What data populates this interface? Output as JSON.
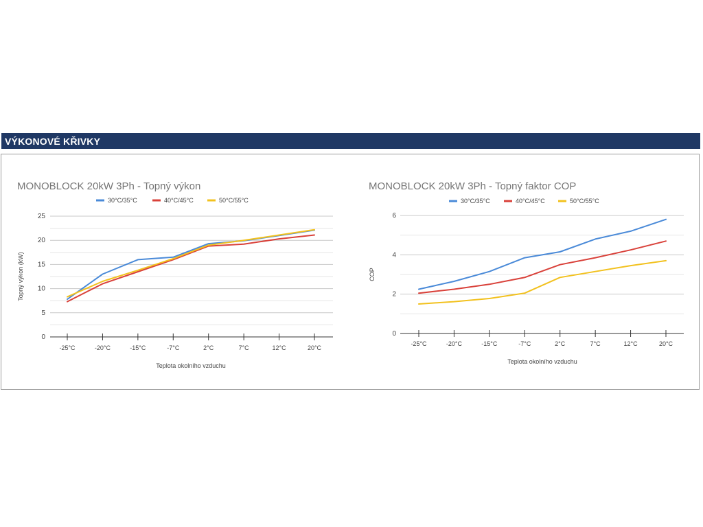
{
  "section": {
    "title": "VÝKONOVÉ KŘIVKY"
  },
  "colors": {
    "header_bg": "#1f3864",
    "series_1": "#4a8ad8",
    "series_2": "#d9413a",
    "series_3": "#f2c11e",
    "grid": "#d0d0d0"
  },
  "chart_data": [
    {
      "type": "line",
      "title": "MONOBLOCK 20kW 3Ph - Topný výkon",
      "xlabel": "Teplota okolního vzduchu",
      "ylabel": "Topný výkon (kW)",
      "categories": [
        "-25°C",
        "-20°C",
        "-15°C",
        "-7°C",
        "2°C",
        "7°C",
        "12°C",
        "20°C"
      ],
      "yticks": [
        "0",
        "5",
        "10",
        "15",
        "20",
        "25"
      ],
      "ylim": [
        0,
        25
      ],
      "grid": true,
      "legend": "top",
      "series": [
        {
          "name": "30°C/35°C",
          "color": "#4a8ad8",
          "values": [
            7.8,
            13.0,
            16.0,
            16.5,
            19.3,
            19.9,
            21.0,
            22.1
          ]
        },
        {
          "name": "40°C/45°C",
          "color": "#d9413a",
          "values": [
            7.3,
            11.0,
            13.5,
            16.0,
            18.8,
            19.2,
            20.3,
            21.1
          ]
        },
        {
          "name": "50°C/55°C",
          "color": "#f2c11e",
          "values": [
            8.3,
            11.5,
            13.8,
            16.2,
            19.0,
            20.0,
            21.1,
            22.2
          ]
        }
      ]
    },
    {
      "type": "line",
      "title": "MONOBLOCK 20kW 3Ph - Topný faktor COP",
      "xlabel": "Teplota okolního vzduchu",
      "ylabel": "COP",
      "categories": [
        "-25°C",
        "-20°C",
        "-15°C",
        "-7°C",
        "2°C",
        "7°C",
        "12°C",
        "20°C"
      ],
      "yticks": [
        "0",
        "2",
        "4",
        "6"
      ],
      "ylim": [
        0,
        6
      ],
      "grid": true,
      "legend": "top",
      "series": [
        {
          "name": "30°C/35°C",
          "color": "#4a8ad8",
          "values": [
            2.25,
            2.65,
            3.15,
            3.85,
            4.15,
            4.8,
            5.2,
            5.8
          ]
        },
        {
          "name": "40°C/45°C",
          "color": "#d9413a",
          "values": [
            2.05,
            2.25,
            2.5,
            2.85,
            3.5,
            3.85,
            4.25,
            4.7
          ]
        },
        {
          "name": "50°C/55°C",
          "color": "#f2c11e",
          "values": [
            1.5,
            1.62,
            1.78,
            2.05,
            2.85,
            3.15,
            3.45,
            3.7
          ]
        }
      ]
    }
  ]
}
